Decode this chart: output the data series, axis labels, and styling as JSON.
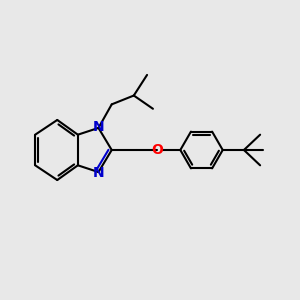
{
  "bg_color": "#e8e8e8",
  "bond_color": "#000000",
  "N_color": "#0000cc",
  "O_color": "#ff0000",
  "line_width": 1.5,
  "font_size": 10,
  "xlim": [
    0,
    10
  ],
  "ylim": [
    0,
    10
  ]
}
